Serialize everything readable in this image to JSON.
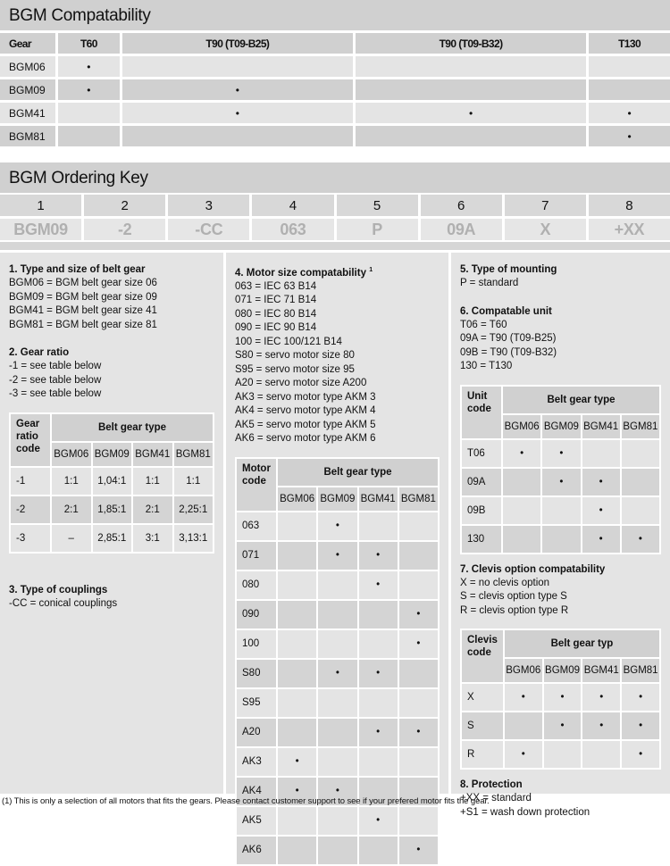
{
  "compat": {
    "title": "BGM Compatability",
    "headers": [
      "Gear",
      "T60",
      "T90 (T09-B25)",
      "T90 (T09-B32)",
      "T130"
    ],
    "rows": [
      [
        "BGM06",
        "•",
        "",
        "",
        ""
      ],
      [
        "BGM09",
        "•",
        "•",
        "",
        ""
      ],
      [
        "BGM41",
        "",
        "•",
        "•",
        "•"
      ],
      [
        "BGM81",
        "",
        "",
        "",
        "•"
      ]
    ]
  },
  "ordering": {
    "title": "BGM Ordering Key",
    "numbers": [
      "1",
      "2",
      "3",
      "4",
      "5",
      "6",
      "7",
      "8"
    ],
    "codes": [
      "BGM09",
      "-2",
      "-CC",
      "063",
      "P",
      "09A",
      "X",
      "+XX"
    ]
  },
  "left": {
    "s1": {
      "title": "1. Type and size of belt gear",
      "lines": [
        "BGM06 = BGM belt gear size 06",
        "BGM09 = BGM belt gear size 09",
        "BGM41 = BGM belt gear size 41",
        "BGM81 = BGM belt gear size 81"
      ]
    },
    "s2": {
      "title": "2. Gear ratio",
      "lines": [
        "-1 = see table below",
        "-2 = see table below",
        "-3 = see table below"
      ]
    },
    "ratio": {
      "rowhead": "Gear ratio code",
      "group": "Belt gear type",
      "cols": [
        "BGM06",
        "BGM09",
        "BGM41",
        "BGM81"
      ],
      "rows": [
        [
          "-1",
          "1:1",
          "1,04:1",
          "1:1",
          "1:1"
        ],
        [
          "-2",
          "2:1",
          "1,85:1",
          "2:1",
          "2,25:1"
        ],
        [
          "-3",
          "–",
          "2,85:1",
          "3:1",
          "3,13:1"
        ]
      ]
    },
    "s3": {
      "title": "3. Type of couplings",
      "lines": [
        "-CC = conical couplings"
      ]
    }
  },
  "mid": {
    "s4": {
      "title": "4. Motor size compatability",
      "sup": "1",
      "lines": [
        "063 = IEC 63 B14",
        "071 = IEC 71 B14",
        "080 = IEC 80 B14",
        "090 = IEC 90 B14",
        "100 = IEC 100/121 B14",
        "S80 = servo motor size 80",
        "S95 = servo motor size 95",
        "A20 = servo motor size A200",
        "AK3 = servo motor type AKM 3",
        "AK4 = servo motor type AKM 4",
        "AK5 = servo motor type AKM 5",
        "AK6 = servo motor type AKM 6"
      ]
    },
    "motor": {
      "rowhead": "Motor code",
      "group": "Belt gear type",
      "cols": [
        "BGM06",
        "BGM09",
        "BGM41",
        "BGM81"
      ],
      "rows": [
        [
          "063",
          "",
          "•",
          "",
          ""
        ],
        [
          "071",
          "",
          "•",
          "•",
          ""
        ],
        [
          "080",
          "",
          "",
          "•",
          ""
        ],
        [
          "090",
          "",
          "",
          "",
          "•"
        ],
        [
          "100",
          "",
          "",
          "",
          "•"
        ],
        [
          "S80",
          "",
          "•",
          "•",
          ""
        ],
        [
          "S95",
          "",
          "",
          "",
          ""
        ],
        [
          "A20",
          "",
          "",
          "•",
          "•"
        ],
        [
          "AK3",
          "•",
          "",
          "",
          ""
        ],
        [
          "AK4",
          "•",
          "•",
          "",
          ""
        ],
        [
          "AK5",
          "",
          "",
          "•",
          ""
        ],
        [
          "AK6",
          "",
          "",
          "",
          "•"
        ]
      ]
    }
  },
  "right": {
    "s5": {
      "title": "5. Type of mounting",
      "lines": [
        "P = standard"
      ]
    },
    "s6": {
      "title": "6. Compatable unit",
      "lines": [
        "T06 = T60",
        "09A = T90 (T09-B25)",
        "09B = T90 (T09-B32)",
        "130 = T130"
      ]
    },
    "unit": {
      "rowhead": "Unit code",
      "group": "Belt gear type",
      "cols": [
        "BGM06",
        "BGM09",
        "BGM41",
        "BGM81"
      ],
      "rows": [
        [
          "T06",
          "•",
          "•",
          "",
          ""
        ],
        [
          "09A",
          "",
          "•",
          "•",
          ""
        ],
        [
          "09B",
          "",
          "",
          "•",
          ""
        ],
        [
          "130",
          "",
          "",
          "•",
          "•"
        ]
      ]
    },
    "s7": {
      "title": "7. Clevis option compatability",
      "lines": [
        "X = no clevis option",
        "S = clevis option type S",
        "R = clevis option type R"
      ]
    },
    "clevis": {
      "rowhead": "Clevis code",
      "group": "Belt gear typ",
      "cols": [
        "BGM06",
        "BGM09",
        "BGM41",
        "BGM81"
      ],
      "rows": [
        [
          "X",
          "•",
          "•",
          "•",
          "•"
        ],
        [
          "S",
          "",
          "•",
          "•",
          "•"
        ],
        [
          "R",
          "•",
          "",
          "",
          "•"
        ]
      ]
    },
    "s8": {
      "title": "8. Protection",
      "lines": [
        "+XX = standard",
        "+S1 = wash down protection"
      ]
    }
  },
  "footnote": "(1) This is only a selection of all motors that fits the gears. Please contact customer support to see if your prefered motor fits the gear."
}
